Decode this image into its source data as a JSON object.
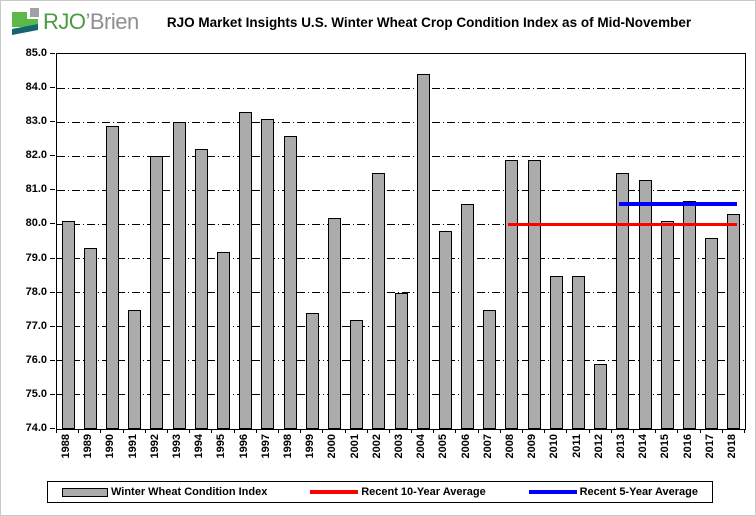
{
  "logo": {
    "text_primary": "RJO",
    "text_secondary": "’Brien"
  },
  "chart_data": {
    "type": "bar",
    "title": "RJO Market Insights U.S. Winter Wheat Crop Condition Index as of Mid-November",
    "categories": [
      "1988",
      "1989",
      "1990",
      "1991",
      "1992",
      "1993",
      "1994",
      "1995",
      "1996",
      "1997",
      "1998",
      "1999",
      "2000",
      "2001",
      "2002",
      "2003",
      "2004",
      "2005",
      "2006",
      "2007",
      "2008",
      "2009",
      "2010",
      "2011",
      "2012",
      "2013",
      "2014",
      "2015",
      "2016",
      "2017",
      "2018"
    ],
    "series": [
      {
        "name": "Winter Wheat Condition Index",
        "type": "bar",
        "color": "#ababab",
        "values": [
          80.1,
          79.3,
          82.9,
          77.5,
          82.0,
          83.0,
          82.2,
          79.2,
          83.3,
          83.1,
          82.6,
          77.4,
          80.2,
          77.2,
          81.5,
          78.0,
          84.4,
          79.8,
          80.6,
          77.5,
          81.9,
          81.9,
          78.5,
          78.5,
          75.9,
          81.5,
          81.3,
          80.1,
          80.7,
          79.6,
          80.3
        ]
      },
      {
        "name": "Recent 10-Year Average",
        "type": "line",
        "color": "#ff0000",
        "value": 80.0,
        "span": [
          "2008",
          "2018"
        ],
        "thickness": 3
      },
      {
        "name": "Recent 5-Year Average",
        "type": "line",
        "color": "#0000ff",
        "value": 80.6,
        "span": [
          "2013",
          "2018"
        ],
        "thickness": 4
      }
    ],
    "xlabel": "",
    "ylabel": "",
    "ylim": [
      74.0,
      85.0
    ],
    "ytick_step": 1.0,
    "ytick_label_format": "one-decimal",
    "grid": "horizontal-dash-dot",
    "legend_position": "bottom"
  },
  "colors": {
    "bar_fill": "#ababab",
    "bar_border": "#000000",
    "ten_year_avg": "#ff0000",
    "five_year_avg": "#0000ff",
    "logo_green": "#4b9b43",
    "logo_gray": "#8d8f92",
    "logo_icon_green": "#5cb947",
    "logo_icon_teal": "#156570",
    "logo_icon_gray": "#9fa1a4"
  }
}
